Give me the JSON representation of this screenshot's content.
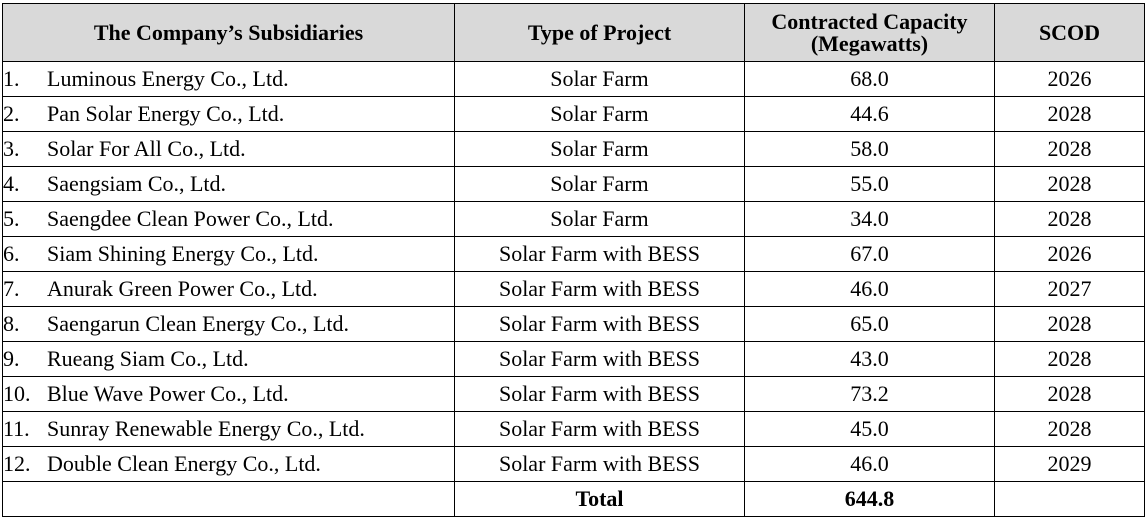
{
  "headers": {
    "subsidiaries": "The Company’s Subsidiaries",
    "type": "Type of Project",
    "capacity_line1": "Contracted Capacity",
    "capacity_line2": "(Megawatts)",
    "scod": "SCOD"
  },
  "rows": [
    {
      "num": "1.",
      "name": "Luminous Energy Co., Ltd.",
      "type": "Solar Farm",
      "capacity": "68.0",
      "scod": "2026"
    },
    {
      "num": "2.",
      "name": "Pan Solar Energy Co., Ltd.",
      "type": "Solar Farm",
      "capacity": "44.6",
      "scod": "2028"
    },
    {
      "num": "3.",
      "name": "Solar For All Co., Ltd.",
      "type": "Solar Farm",
      "capacity": "58.0",
      "scod": "2028"
    },
    {
      "num": "4.",
      "name": "Saengsiam Co., Ltd.",
      "type": "Solar Farm",
      "capacity": "55.0",
      "scod": "2028"
    },
    {
      "num": "5.",
      "name": "Saengdee Clean Power Co., Ltd.",
      "type": "Solar Farm",
      "capacity": "34.0",
      "scod": "2028"
    },
    {
      "num": "6.",
      "name": "Siam Shining Energy Co., Ltd.",
      "type": "Solar Farm with BESS",
      "capacity": "67.0",
      "scod": "2026"
    },
    {
      "num": "7.",
      "name": "Anurak Green Power Co., Ltd.",
      "type": "Solar Farm with BESS",
      "capacity": "46.0",
      "scod": "2027"
    },
    {
      "num": "8.",
      "name": "Saengarun Clean Energy Co., Ltd.",
      "type": "Solar Farm with BESS",
      "capacity": "65.0",
      "scod": "2028"
    },
    {
      "num": "9.",
      "name": "Rueang Siam Co., Ltd.",
      "type": "Solar Farm with BESS",
      "capacity": "43.0",
      "scod": "2028"
    },
    {
      "num": "10.",
      "name": "Blue Wave Power Co., Ltd.",
      "type": "Solar Farm with BESS",
      "capacity": "73.2",
      "scod": "2028"
    },
    {
      "num": "11.",
      "name": "Sunray Renewable Energy Co., Ltd.",
      "type": "Solar Farm with BESS",
      "capacity": "45.0",
      "scod": "2028"
    },
    {
      "num": "12.",
      "name": "Double Clean Energy Co., Ltd.",
      "type": "Solar Farm with BESS",
      "capacity": "46.0",
      "scod": "2029"
    }
  ],
  "total": {
    "label": "Total",
    "capacity": "644.8"
  },
  "colors": {
    "header_bg": "#d9d9d9",
    "border": "#000000"
  }
}
